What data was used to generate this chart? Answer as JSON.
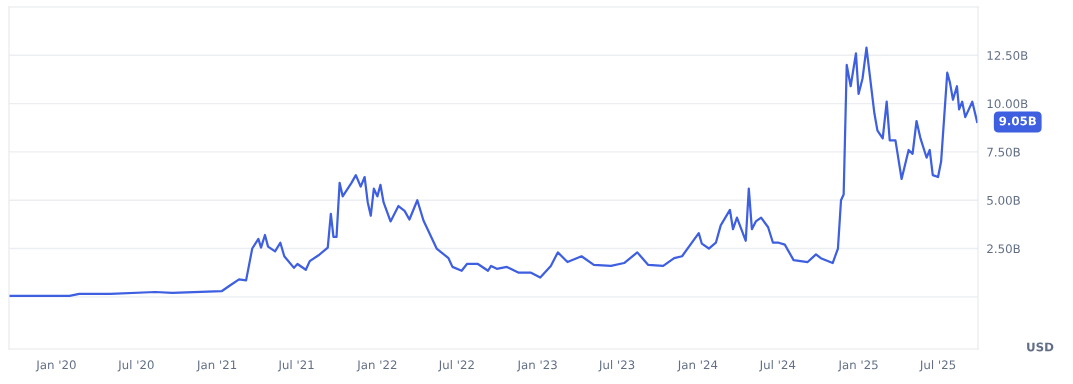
{
  "chart_data": {
    "type": "line",
    "x": [
      "2019-09-17",
      "2020-01-31",
      "2020-02-22",
      "2020-05-03",
      "2020-08-13",
      "2020-09-21",
      "2021-01-12",
      "2021-01-31",
      "2021-02-20",
      "2021-03-08",
      "2021-03-22",
      "2021-04-05",
      "2021-04-11",
      "2021-04-20",
      "2021-04-27",
      "2021-05-13",
      "2021-05-25",
      "2021-06-03",
      "2021-06-25",
      "2021-07-03",
      "2021-07-22",
      "2021-07-31",
      "2021-08-20",
      "2021-09-10",
      "2021-09-17",
      "2021-09-23",
      "2021-09-30",
      "2021-10-07",
      "2021-10-14",
      "2021-11-03",
      "2021-11-13",
      "2021-11-24",
      "2021-12-03",
      "2021-12-10",
      "2021-12-17",
      "2021-12-24",
      "2022-01-01",
      "2022-01-08",
      "2022-01-15",
      "2022-01-31",
      "2022-02-18",
      "2022-03-04",
      "2022-03-15",
      "2022-04-02",
      "2022-04-16",
      "2022-05-16",
      "2022-06-12",
      "2022-06-21",
      "2022-07-12",
      "2022-07-24",
      "2022-08-18",
      "2022-09-10",
      "2022-09-17",
      "2022-09-30",
      "2022-10-23",
      "2022-11-19",
      "2022-12-17",
      "2023-01-07",
      "2023-01-31",
      "2023-02-16",
      "2023-03-10",
      "2023-04-11",
      "2023-05-09",
      "2023-06-17",
      "2023-07-17",
      "2023-08-16",
      "2023-09-10",
      "2023-10-14",
      "2023-11-08",
      "2023-11-26",
      "2023-12-15",
      "2024-01-03",
      "2024-01-10",
      "2024-01-26",
      "2024-02-11",
      "2024-02-22",
      "2024-03-14",
      "2024-03-21",
      "2024-03-30",
      "2024-04-19",
      "2024-04-26",
      "2024-05-03",
      "2024-05-12",
      "2024-05-24",
      "2024-06-09",
      "2024-06-20",
      "2024-07-03",
      "2024-07-17",
      "2024-08-06",
      "2024-09-07",
      "2024-09-26",
      "2024-10-07",
      "2024-11-03",
      "2024-11-15",
      "2024-11-22",
      "2024-11-28",
      "2024-12-05",
      "2024-12-14",
      "2024-12-26",
      "2025-01-01",
      "2025-01-10",
      "2025-01-19",
      "2025-02-06",
      "2025-02-13",
      "2025-02-25",
      "2025-03-06",
      "2025-03-13",
      "2025-03-26",
      "2025-04-09",
      "2025-04-25",
      "2025-05-04",
      "2025-05-13",
      "2025-05-22",
      "2025-06-05",
      "2025-06-12",
      "2025-06-19",
      "2025-07-01",
      "2025-07-08",
      "2025-07-22",
      "2025-07-28",
      "2025-08-04",
      "2025-08-13",
      "2025-08-18",
      "2025-08-25",
      "2025-09-01",
      "2025-09-17",
      "2025-09-28"
    ],
    "series": [
      {
        "color": "#3d5fe0",
        "values": [
          0.05,
          0.05,
          0.15,
          0.15,
          0.25,
          0.2,
          0.3,
          0.6,
          0.9,
          0.85,
          2.5,
          3.0,
          2.55,
          3.2,
          2.6,
          2.35,
          2.8,
          2.1,
          1.5,
          1.7,
          1.4,
          1.85,
          2.15,
          2.55,
          4.3,
          3.1,
          3.1,
          5.9,
          5.2,
          5.9,
          6.3,
          5.7,
          6.2,
          4.9,
          4.2,
          5.6,
          5.2,
          5.8,
          4.9,
          3.9,
          4.7,
          4.45,
          4.0,
          5.0,
          3.95,
          2.5,
          2.0,
          1.55,
          1.35,
          1.7,
          1.7,
          1.35,
          1.6,
          1.45,
          1.55,
          1.25,
          1.25,
          1.0,
          1.6,
          2.3,
          1.8,
          2.1,
          1.65,
          1.6,
          1.75,
          2.3,
          1.65,
          1.6,
          2.0,
          2.1,
          2.7,
          3.3,
          2.75,
          2.5,
          2.8,
          3.7,
          4.5,
          3.5,
          4.1,
          2.9,
          5.6,
          3.5,
          3.9,
          4.1,
          3.6,
          2.8,
          2.8,
          2.7,
          1.9,
          1.8,
          2.2,
          2.0,
          1.75,
          2.5,
          5.0,
          5.3,
          12.0,
          10.9,
          12.6,
          10.5,
          11.3,
          12.9,
          9.5,
          8.6,
          8.2,
          10.1,
          8.1,
          8.1,
          6.1,
          7.6,
          7.4,
          9.1,
          8.2,
          7.2,
          7.6,
          6.3,
          6.2,
          7.0,
          11.6,
          11.1,
          10.2,
          10.9,
          9.7,
          10.1,
          9.3,
          10.1,
          9.05
        ]
      }
    ],
    "xlim": [
      "2019-09-15",
      "2025-09-30"
    ],
    "xticks": [
      {
        "value": "2020-01-01",
        "label": "Jan '20"
      },
      {
        "value": "2020-07-01",
        "label": "Jul '20"
      },
      {
        "value": "2021-01-01",
        "label": "Jan '21"
      },
      {
        "value": "2021-07-01",
        "label": "Jul '21"
      },
      {
        "value": "2022-01-01",
        "label": "Jan '22"
      },
      {
        "value": "2022-07-01",
        "label": "Jul '22"
      },
      {
        "value": "2023-01-01",
        "label": "Jan '23"
      },
      {
        "value": "2023-07-01",
        "label": "Jul '23"
      },
      {
        "value": "2024-01-01",
        "label": "Jan '24"
      },
      {
        "value": "2024-07-01",
        "label": "Jul '24"
      },
      {
        "value": "2025-01-01",
        "label": "Jan '25"
      },
      {
        "value": "2025-07-01",
        "label": "Jul '25"
      }
    ],
    "ylim": [
      -2.7,
      15
    ],
    "yticks": [
      {
        "value": 0,
        "label": null
      },
      {
        "value": 2.5,
        "label": "2.50B"
      },
      {
        "value": 5,
        "label": "5.00B"
      },
      {
        "value": 7.5,
        "label": "7.50B"
      },
      {
        "value": 10,
        "label": "10.00B"
      },
      {
        "value": 12.5,
        "label": "12.50B"
      }
    ],
    "grid": "y",
    "marker": "none",
    "line_style": "solid",
    "legend": false,
    "annotations": [
      {
        "text": "9.05B",
        "x": "2025-09-28",
        "y": 9.05
      },
      "USD"
    ]
  }
}
